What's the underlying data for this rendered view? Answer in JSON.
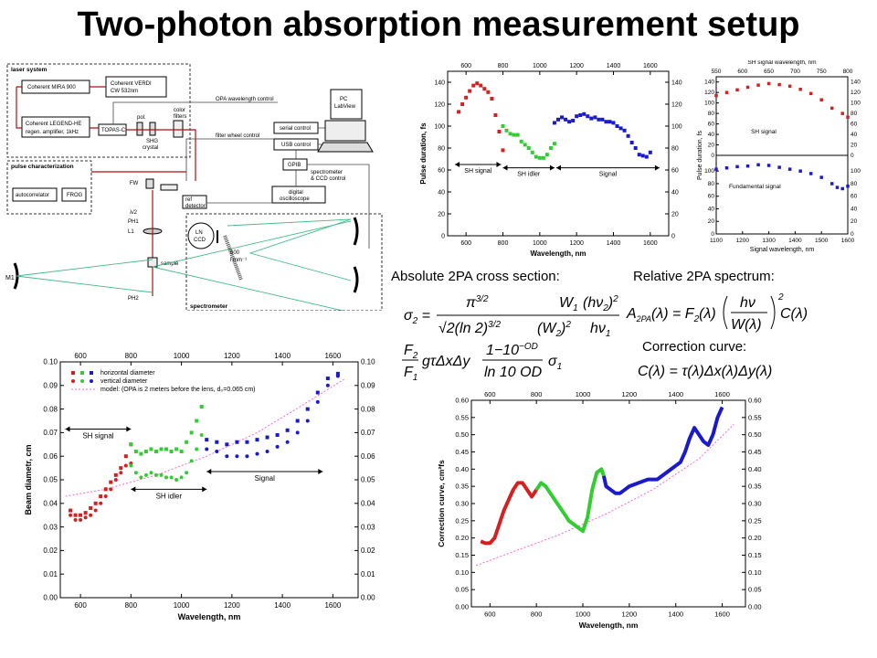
{
  "title": "Two-photon absorption measurement setup",
  "labels": {
    "abs_cross_section": "Absolute 2PA cross section:",
    "rel_spectrum": "Relative 2PA spectrum:",
    "correction": "Correction curve:"
  },
  "schematic": {
    "laser_system": "laser system",
    "mira": "Coherent MIRA 900",
    "verdi_1": "Coherent VERDI",
    "verdi_2": "CW 532nm",
    "legend_1": "Coherent LEGEND-HE",
    "legend_2": "regen. amplifier, 1kHz",
    "topas": "TOPAS-C",
    "pol": "pol.",
    "shg_1": "SHG",
    "shg_2": "crystal",
    "color_1": "color",
    "color_2": "filters",
    "pulse_char": "pulse characterization",
    "autocorrelator": "autocorrelator",
    "frog": "FROG",
    "opa_ctrl": "OPA wavelength control",
    "filter_ctrl": "filter wheel control",
    "serial": "serial control",
    "usb": "USB control",
    "gpib": "GPIB",
    "pc_1": "PC",
    "pc_2": "LabView",
    "spec_ccd_1": "spectrometer",
    "spec_ccd_2": "& CCD control",
    "ref_1": "ref",
    "ref_2": "detector",
    "osc_1": "digital",
    "osc_2": "oscilloscope",
    "fw": "FW",
    "l2": "λ/2",
    "ph1": "PH1",
    "l1": "L1",
    "sample": "sample",
    "m1": "M1",
    "ph2": "PH2",
    "ln_1": "LN",
    "ln_2": "CCD",
    "grating_1": "600",
    "grating_2": "l mm⁻¹",
    "spectrometer": "spectrometer"
  },
  "colors": {
    "red": "#d42020",
    "green": "#33cc33",
    "blue": "#1a1acc",
    "model": "#ff66cc",
    "beam_green": "#44bb88",
    "beam_red": "#aa1111"
  },
  "chart_data": [
    {
      "id": "pulse_duration",
      "type": "scatter",
      "xlabel": "Wavelength, nm",
      "ylabel": "Pulse duration, fs",
      "top_axis_ticks": [
        "600",
        "800",
        "1000",
        "1200",
        "1400",
        "1600"
      ],
      "xlim": [
        500,
        1700
      ],
      "ylim": [
        0,
        150
      ],
      "x_ticks": [
        600,
        800,
        1000,
        1200,
        1400,
        1600
      ],
      "y_ticks": [
        0,
        20,
        40,
        60,
        80,
        100,
        120,
        140
      ],
      "annotations": [
        "SH signal",
        "SH idler",
        "Signal"
      ],
      "series": [
        {
          "color": "red",
          "x": [
            560,
            580,
            600,
            620,
            640,
            660,
            680,
            700,
            720,
            740,
            760,
            780,
            800
          ],
          "y": [
            113,
            120,
            126,
            132,
            137,
            139,
            137,
            134,
            131,
            125,
            110,
            95,
            78
          ]
        },
        {
          "color": "green",
          "x": [
            800,
            820,
            840,
            860,
            880,
            900,
            920,
            940,
            960,
            980,
            1000,
            1020,
            1040,
            1060,
            1080
          ],
          "y": [
            100,
            96,
            93,
            92,
            92,
            86,
            83,
            80,
            76,
            72,
            71,
            71,
            74,
            80,
            84
          ]
        },
        {
          "color": "blue",
          "x": [
            1080,
            1100,
            1120,
            1140,
            1160,
            1180,
            1200,
            1220,
            1240,
            1260,
            1280,
            1300,
            1320,
            1340,
            1360,
            1380,
            1400,
            1420,
            1440,
            1460,
            1480,
            1500,
            1520,
            1540,
            1560,
            1580,
            1600
          ],
          "y": [
            103,
            106,
            108,
            106,
            104,
            105,
            109,
            110,
            111,
            109,
            107,
            108,
            106,
            106,
            104,
            104,
            103,
            100,
            98,
            96,
            91,
            85,
            80,
            74,
            73,
            72,
            76
          ]
        }
      ]
    },
    {
      "id": "sh_fundamental",
      "type": "scatter",
      "xlabel": "Signal wavelength, nm",
      "top_xlabel": "SH signal wavelength, nm",
      "ylabel": "Pulse duration, fs",
      "top_axis_ticks": [
        "550",
        "600",
        "650",
        "700",
        "750",
        "800"
      ],
      "xlim": [
        1100,
        1600
      ],
      "x_ticks": [
        1100,
        1200,
        1300,
        1400,
        1500,
        1600
      ],
      "x_tick_labels": [
        "1100",
        "1200",
        "1300",
        "1400",
        "1500",
        "1600"
      ],
      "ylim": [
        0,
        150
      ],
      "y_ticks": [
        0,
        20,
        40,
        60,
        80,
        100,
        120,
        140
      ],
      "lower_y_ticks": [
        0,
        20,
        40,
        60,
        80,
        100
      ],
      "annotations": [
        "SH signal",
        "Fundamental signal"
      ],
      "series": [
        {
          "name": "SH signal",
          "color": "red",
          "x": [
            1100,
            1140,
            1180,
            1220,
            1260,
            1300,
            1340,
            1380,
            1420,
            1460,
            1500,
            1540,
            1580,
            1600
          ],
          "y": [
            114,
            120,
            125,
            130,
            134,
            137,
            135,
            132,
            126,
            118,
            106,
            90,
            80,
            73
          ]
        },
        {
          "name": "Fundamental signal",
          "color": "blue",
          "x": [
            1100,
            1140,
            1180,
            1220,
            1260,
            1300,
            1340,
            1380,
            1420,
            1460,
            1500,
            1540,
            1560,
            1580,
            1600
          ],
          "y": [
            103,
            105,
            107,
            108,
            110,
            109,
            106,
            103,
            100,
            96,
            90,
            80,
            74,
            72,
            76
          ]
        }
      ]
    },
    {
      "id": "beam_diameter",
      "type": "scatter",
      "xlabel": "Wavelength, nm",
      "ylabel": "Beam diametr, cm",
      "top_axis_ticks": [
        "600",
        "800",
        "1000",
        "1200",
        "1400",
        "1600"
      ],
      "xlim": [
        520,
        1700
      ],
      "ylim": [
        0,
        0.1
      ],
      "x_ticks": [
        600,
        800,
        1000,
        1200,
        1400,
        1600
      ],
      "y_ticks": [
        0.0,
        0.01,
        0.02,
        0.03,
        0.04,
        0.05,
        0.06,
        0.07,
        0.08,
        0.09,
        0.1
      ],
      "legend": [
        "horizontal diameter",
        "vertical diameter",
        "model: (OPA is 2 meters before the lens, d₀=0.065 cm)"
      ],
      "annotations": [
        "SH signal",
        "SH idler",
        "Signal"
      ],
      "series": [
        {
          "name": "horizontal diameter",
          "color": "red",
          "x": [
            560,
            580,
            600,
            620,
            640,
            660,
            680,
            700,
            720,
            740,
            760,
            780,
            800
          ],
          "y": [
            0.037,
            0.035,
            0.035,
            0.036,
            0.038,
            0.04,
            0.043,
            0.046,
            0.049,
            0.052,
            0.055,
            0.06,
            0.065
          ]
        },
        {
          "name": "vertical diameter",
          "color": "red",
          "x": [
            560,
            580,
            600,
            620,
            640,
            660,
            680,
            700,
            720,
            740,
            760,
            780,
            800
          ],
          "y": [
            0.035,
            0.033,
            0.033,
            0.034,
            0.035,
            0.037,
            0.04,
            0.043,
            0.046,
            0.05,
            0.053,
            0.056,
            0.057
          ]
        },
        {
          "name": "horizontal diameter",
          "color": "green",
          "x": [
            800,
            820,
            840,
            860,
            880,
            900,
            920,
            940,
            960,
            980,
            1000,
            1020,
            1040,
            1060,
            1080
          ],
          "y": [
            0.065,
            0.062,
            0.061,
            0.062,
            0.063,
            0.062,
            0.063,
            0.063,
            0.062,
            0.063,
            0.062,
            0.066,
            0.07,
            0.075,
            0.081
          ]
        },
        {
          "name": "vertical diameter",
          "color": "green",
          "x": [
            800,
            820,
            840,
            860,
            880,
            900,
            920,
            940,
            960,
            980,
            1000,
            1020,
            1040,
            1060,
            1080
          ],
          "y": [
            0.056,
            0.053,
            0.051,
            0.052,
            0.053,
            0.052,
            0.052,
            0.051,
            0.051,
            0.05,
            0.051,
            0.053,
            0.058,
            0.063,
            0.069
          ]
        },
        {
          "name": "horizontal diameter",
          "color": "blue",
          "x": [
            1100,
            1140,
            1180,
            1220,
            1260,
            1300,
            1340,
            1380,
            1420,
            1460,
            1500,
            1540,
            1580,
            1620
          ],
          "y": [
            0.067,
            0.066,
            0.065,
            0.066,
            0.066,
            0.067,
            0.068,
            0.069,
            0.071,
            0.075,
            0.08,
            0.087,
            0.093,
            0.095
          ]
        },
        {
          "name": "vertical diameter",
          "color": "blue",
          "x": [
            1100,
            1140,
            1180,
            1220,
            1260,
            1300,
            1340,
            1380,
            1420,
            1460,
            1500,
            1540,
            1580,
            1620
          ],
          "y": [
            0.063,
            0.062,
            0.06,
            0.06,
            0.06,
            0.061,
            0.062,
            0.064,
            0.066,
            0.07,
            0.075,
            0.083,
            0.09,
            0.094
          ]
        }
      ],
      "model": {
        "x": [
          540,
          700,
          900,
          1100,
          1300,
          1500,
          1650
        ],
        "y": [
          0.043,
          0.046,
          0.052,
          0.06,
          0.07,
          0.083,
          0.093
        ]
      }
    },
    {
      "id": "correction_curve",
      "type": "line",
      "xlabel": "Wavelength, nm",
      "ylabel": "Correction curve, cm²fs",
      "top_axis_ticks": [
        "600",
        "800",
        "1000",
        "1200",
        "1400",
        "1600"
      ],
      "xlim": [
        520,
        1700
      ],
      "ylim": [
        0,
        0.6
      ],
      "x_ticks": [
        600,
        800,
        1000,
        1200,
        1400,
        1600
      ],
      "y_ticks": [
        0.0,
        0.05,
        0.1,
        0.15,
        0.2,
        0.25,
        0.3,
        0.35,
        0.4,
        0.45,
        0.5,
        0.55,
        0.6
      ],
      "series": [
        {
          "color": "red",
          "x": [
            560,
            580,
            600,
            620,
            640,
            660,
            680,
            700,
            720,
            740,
            760,
            780,
            800
          ],
          "y": [
            0.19,
            0.185,
            0.185,
            0.2,
            0.24,
            0.28,
            0.31,
            0.34,
            0.36,
            0.36,
            0.34,
            0.32,
            0.34
          ]
        },
        {
          "color": "green",
          "x": [
            800,
            820,
            840,
            860,
            880,
            900,
            920,
            940,
            960,
            980,
            1000,
            1020,
            1040,
            1060,
            1080,
            1090
          ],
          "y": [
            0.34,
            0.36,
            0.35,
            0.33,
            0.31,
            0.29,
            0.27,
            0.25,
            0.24,
            0.23,
            0.22,
            0.26,
            0.34,
            0.39,
            0.4,
            0.38
          ]
        },
        {
          "color": "blue",
          "x": [
            1090,
            1100,
            1120,
            1140,
            1160,
            1180,
            1200,
            1240,
            1280,
            1320,
            1360,
            1400,
            1420,
            1440,
            1460,
            1480,
            1500,
            1520,
            1540,
            1560,
            1580,
            1600
          ],
          "y": [
            0.38,
            0.35,
            0.34,
            0.33,
            0.33,
            0.34,
            0.35,
            0.36,
            0.37,
            0.37,
            0.39,
            0.41,
            0.42,
            0.45,
            0.49,
            0.52,
            0.5,
            0.48,
            0.47,
            0.5,
            0.55,
            0.58
          ]
        }
      ],
      "model": {
        "x": [
          540,
          700,
          900,
          1100,
          1300,
          1500,
          1650
        ],
        "y": [
          0.12,
          0.16,
          0.21,
          0.27,
          0.34,
          0.43,
          0.53
        ]
      }
    }
  ]
}
